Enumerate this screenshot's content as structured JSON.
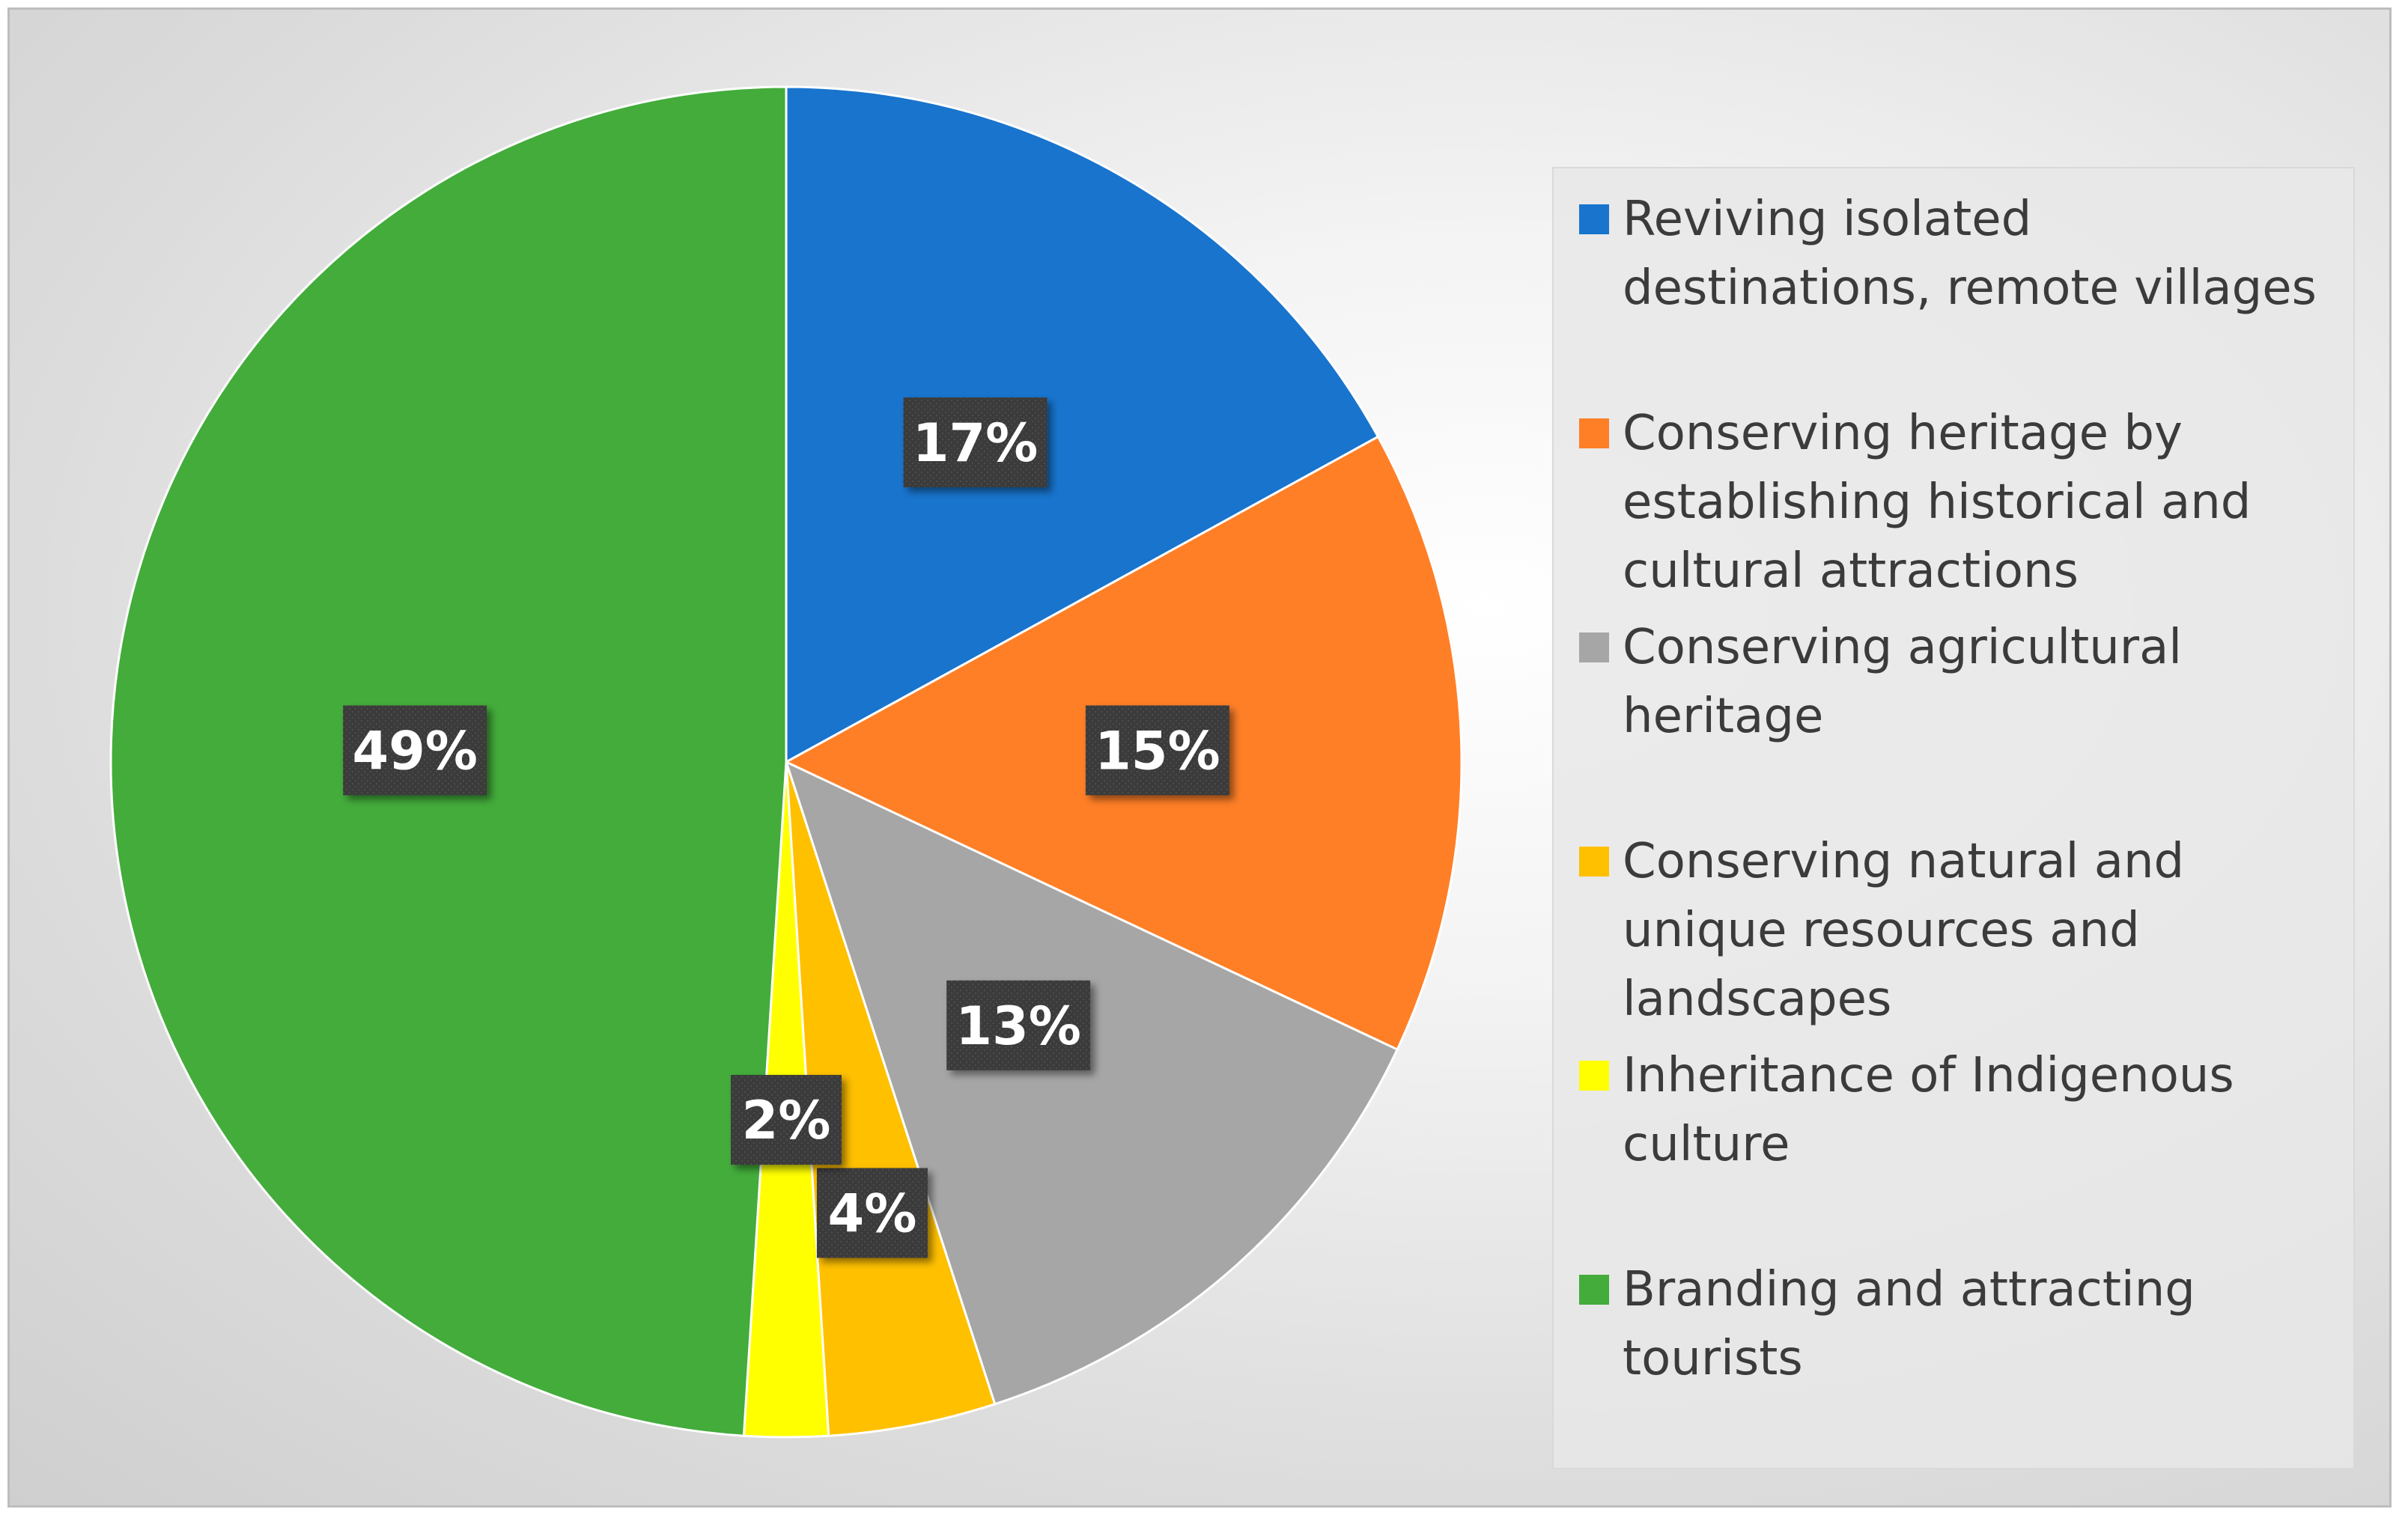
{
  "chart_data": {
    "type": "pie",
    "title": "",
    "start_angle_deg": 0,
    "direction": "clockwise",
    "legend_position": "right",
    "data_label_format": "percent",
    "slices": [
      {
        "name": "Reviving isolated destinations, remote villages",
        "value": 17,
        "label": "17%",
        "color": "#1874CD"
      },
      {
        "name": "Conserving heritage by establishing historical and cultural attractions",
        "value": 15,
        "label": "15%",
        "color": "#FF7F27"
      },
      {
        "name": "Conserving agricultural heritage",
        "value": 13,
        "label": "13%",
        "color": "#A6A6A6"
      },
      {
        "name": "Conserving natural and unique resources and landscapes",
        "value": 4,
        "label": "4%",
        "color": "#FFC000"
      },
      {
        "name": "Inheritance of Indigenous culture",
        "value": 2,
        "label": "2%",
        "color": "#FFFF00"
      },
      {
        "name": "Branding and attracting tourists",
        "value": 49,
        "label": "49%",
        "color": "#43AC3B"
      }
    ]
  }
}
